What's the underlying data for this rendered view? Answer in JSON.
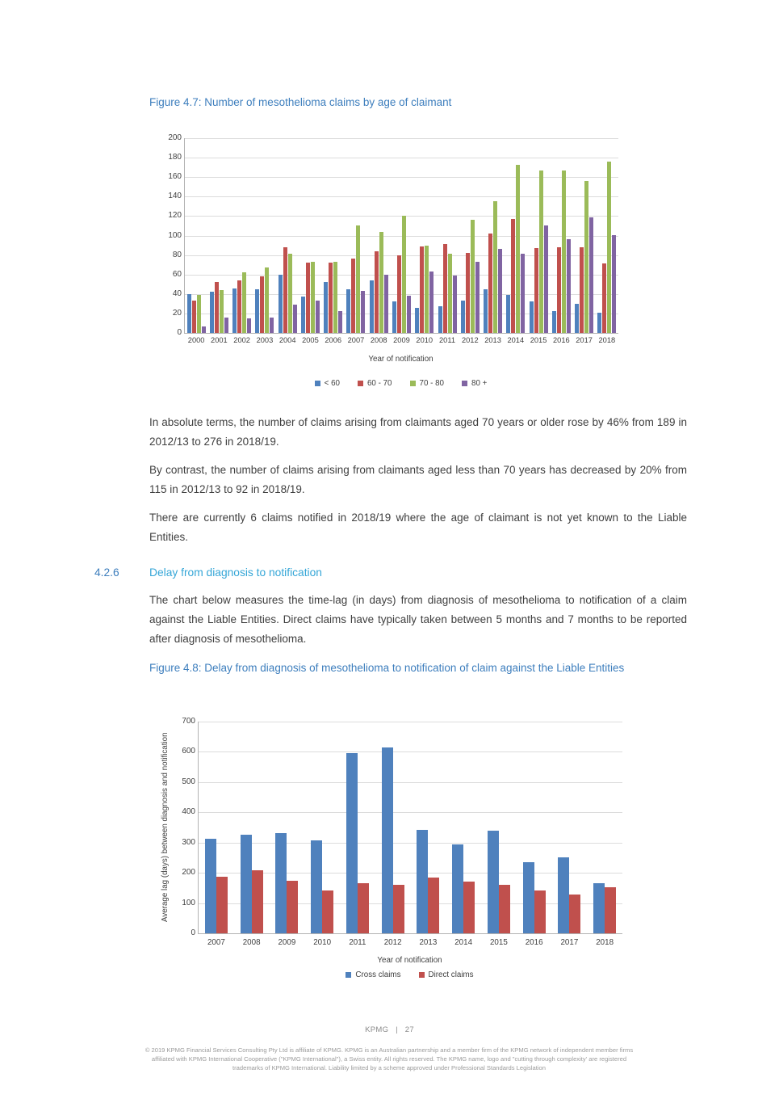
{
  "content": {
    "figure47_caption": "Figure 4.7: Number of mesothelioma claims by age of claimant",
    "paragraph1": "In absolute terms, the number of claims arising from claimants aged 70 years or older rose by 46% from 189 in 2012/13 to 276 in 2018/19.",
    "paragraph2": "By contrast, the number of claims arising from claimants aged less than 70 years has decreased by 20% from 115 in 2012/13 to 92 in 2018/19.",
    "paragraph3": "There are currently 6 claims notified in 2018/19 where the age of claimant is not yet known to the Liable Entities.",
    "section": {
      "number": "4.2.6",
      "title": "Delay from diagnosis to notification"
    },
    "paragraph4": "The chart below measures the time-lag (in days) from diagnosis of mesothelioma to notification of a claim against the Liable Entities. Direct claims have typically taken between 5 months and 7 months to be reported after diagnosis of mesothelioma.",
    "figure48_caption": "Figure 4.8: Delay from diagnosis of mesothelioma to notification of claim against the Liable Entities"
  },
  "chart_data": [
    {
      "id": "fig47",
      "type": "bar",
      "title": "",
      "xlabel": "Year of notification",
      "ylabel": "",
      "ylim": [
        0,
        200
      ],
      "ytick_step": 20,
      "grid": true,
      "legend_position": "bottom",
      "categories": [
        "2000",
        "2001",
        "2002",
        "2003",
        "2004",
        "2005",
        "2006",
        "2007",
        "2008",
        "2009",
        "2010",
        "2011",
        "2012",
        "2013",
        "2014",
        "2015",
        "2016",
        "2017",
        "2018"
      ],
      "series": [
        {
          "name": "< 60",
          "color": "#4F81BD",
          "values": [
            40,
            42,
            46,
            45,
            60,
            37,
            52,
            45,
            54,
            32,
            26,
            27,
            33,
            45,
            39,
            32,
            22,
            30,
            21
          ]
        },
        {
          "name": "60 - 70",
          "color": "#C0504D",
          "values": [
            33,
            52,
            54,
            58,
            88,
            72,
            72,
            76,
            84,
            80,
            89,
            91,
            82,
            102,
            117,
            87,
            88,
            88,
            71
          ]
        },
        {
          "name": "70 - 80",
          "color": "#9BBB59",
          "values": [
            39,
            44,
            62,
            67,
            81,
            73,
            73,
            110,
            104,
            120,
            90,
            81,
            116,
            135,
            173,
            167,
            167,
            156,
            176
          ]
        },
        {
          "name": "80 +",
          "color": "#8064A2",
          "values": [
            7,
            16,
            15,
            16,
            29,
            33,
            22,
            43,
            60,
            38,
            63,
            59,
            73,
            86,
            81,
            110,
            96,
            119,
            100
          ]
        }
      ]
    },
    {
      "id": "fig48",
      "type": "bar",
      "title": "",
      "xlabel": "Year of notification",
      "ylabel": "Average lag (days) between diagnosis and notification",
      "ylim": [
        0,
        700
      ],
      "ytick_step": 100,
      "grid": true,
      "legend_position": "bottom",
      "categories": [
        "2007",
        "2008",
        "2009",
        "2010",
        "2011",
        "2012",
        "2013",
        "2014",
        "2015",
        "2016",
        "2017",
        "2018"
      ],
      "series": [
        {
          "name": "Cross claims",
          "color": "#4F81BD",
          "values": [
            312,
            325,
            330,
            306,
            595,
            615,
            343,
            294,
            339,
            235,
            250,
            166
          ]
        },
        {
          "name": "Direct claims",
          "color": "#C0504D",
          "values": [
            188,
            208,
            173,
            142,
            165,
            159,
            184,
            172,
            160,
            142,
            128,
            151
          ]
        }
      ]
    }
  ],
  "footer": {
    "brand": "KPMG",
    "separator": "|",
    "page_number": "27",
    "copyright_lines": [
      "© 2019 KPMG Financial Services Consulting Pty Ltd is affiliate of KPMG. KPMG is an Australian partnership and a member firm of the KPMG network of independent member firms",
      "affiliated with KPMG International Cooperative (\"KPMG International\"), a Swiss entity. All rights reserved. The KPMG name, logo and \"cutting through complexity' are registered",
      "trademarks of KPMG International. Liability limited by a scheme approved under Professional Standards Legislation"
    ]
  }
}
